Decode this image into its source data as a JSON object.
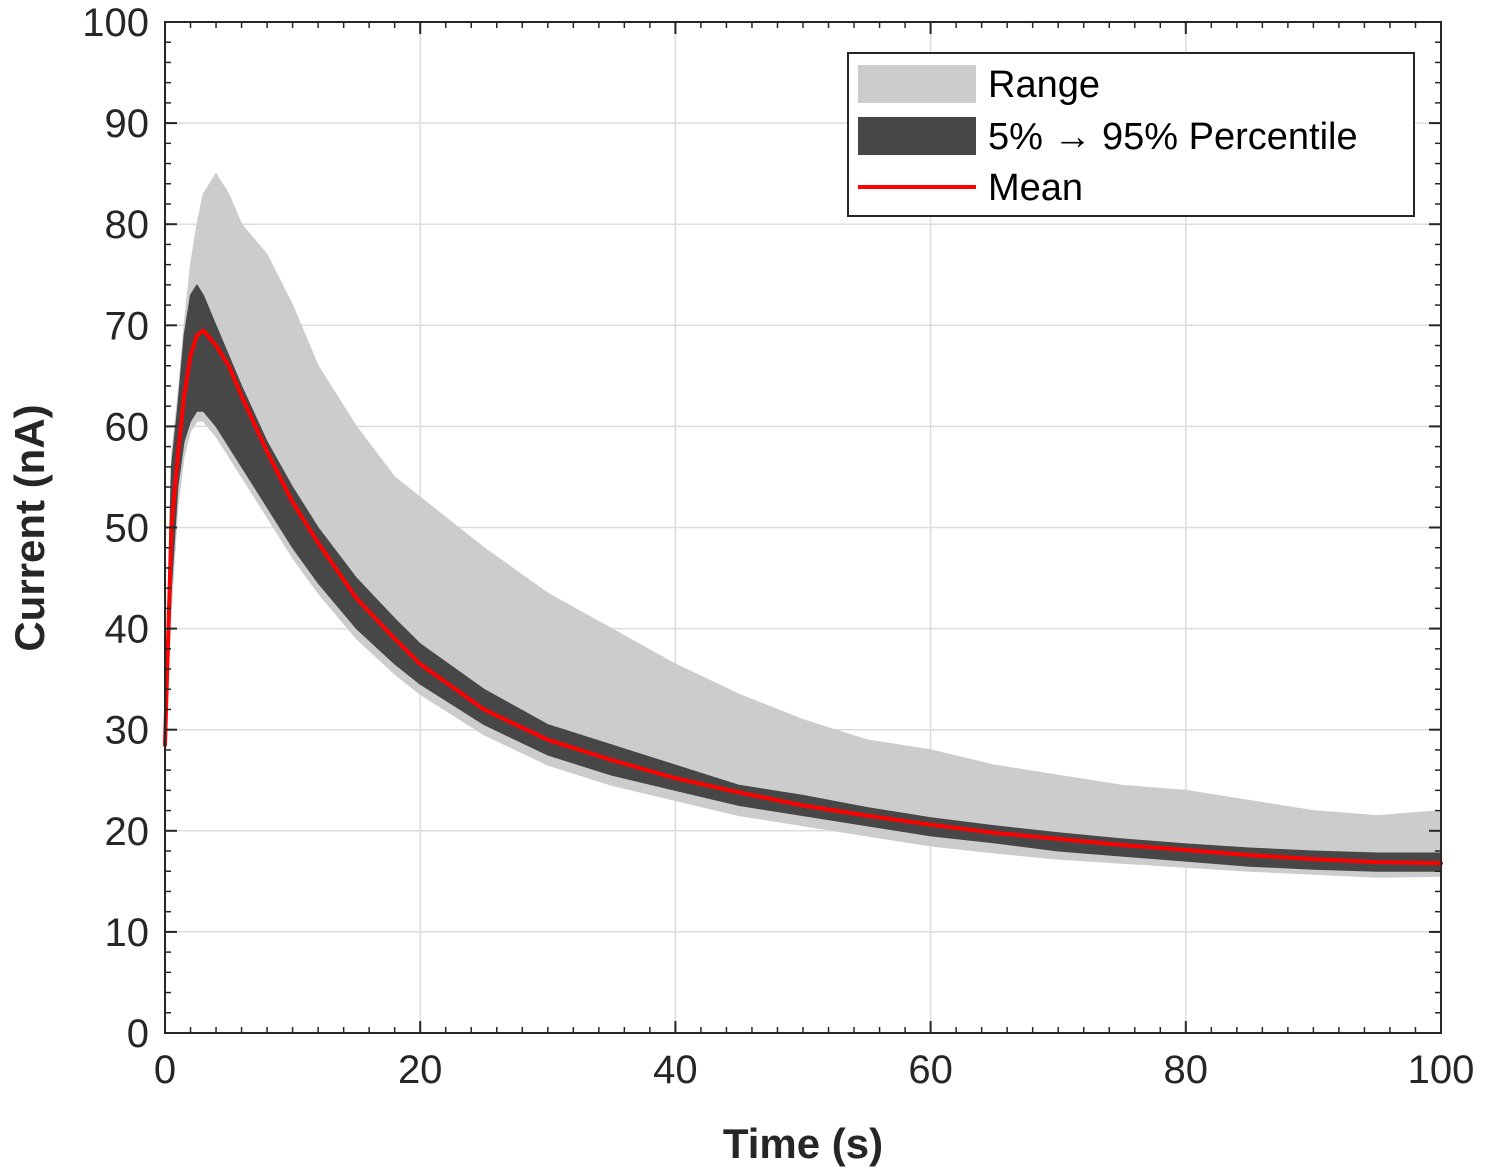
{
  "chart_data": {
    "type": "area",
    "xlabel": "Time (s)",
    "ylabel": "Current (nA)",
    "xlim": [
      0,
      100
    ],
    "ylim": [
      0,
      100
    ],
    "xticks": [
      "0",
      "20",
      "40",
      "60",
      "80",
      "100"
    ],
    "yticks": [
      "0",
      "10",
      "20",
      "30",
      "40",
      "50",
      "60",
      "70",
      "80",
      "90",
      "100"
    ],
    "grid": true,
    "legend_position": "top-right",
    "x": [
      0,
      0.5,
      1,
      1.5,
      2,
      2.5,
      3,
      4,
      5,
      6,
      8,
      10,
      12,
      15,
      18,
      20,
      25,
      30,
      35,
      40,
      45,
      50,
      55,
      60,
      65,
      70,
      75,
      80,
      85,
      90,
      95,
      100
    ],
    "series": [
      {
        "name": "Range",
        "color": "#cccccc",
        "lower": [
          28,
          42,
          52,
          57,
          59.5,
          60.5,
          60.5,
          59,
          57,
          55,
          51,
          47,
          43.5,
          39,
          35.5,
          33.5,
          29.5,
          26.5,
          24.5,
          23,
          21.5,
          20.5,
          19.5,
          18.5,
          17.8,
          17.2,
          16.8,
          16.4,
          16,
          15.7,
          15.4,
          15.5
        ],
        "upper": [
          30,
          57,
          63,
          70,
          76,
          80,
          83,
          85,
          83,
          80,
          77,
          72,
          66,
          60,
          55,
          53,
          48,
          43.5,
          40,
          36.5,
          33.5,
          31,
          29,
          28,
          26.5,
          25.5,
          24.5,
          24,
          23,
          22,
          21.5,
          22
        ]
      },
      {
        "name": "5% → 95% Percentile",
        "color": "#474747",
        "lower": [
          28,
          44,
          54,
          58.5,
          60.5,
          61.5,
          61.5,
          60,
          58,
          56,
          52,
          48,
          44.5,
          40,
          36.5,
          34.5,
          30.5,
          27.5,
          25.5,
          24,
          22.5,
          21.5,
          20.5,
          19.5,
          18.8,
          18,
          17.5,
          17,
          16.5,
          16.2,
          16,
          16
        ],
        "upper": [
          30,
          56,
          62,
          69,
          73,
          74,
          73,
          70,
          67,
          64,
          58.5,
          54,
          50,
          45,
          41,
          38.5,
          34,
          30.5,
          28.5,
          26.5,
          24.5,
          23.5,
          22.3,
          21.3,
          20.5,
          19.8,
          19.2,
          18.7,
          18.3,
          18,
          17.8,
          17.8
        ]
      },
      {
        "name": "Mean",
        "color": "#ff0000",
        "values": [
          28.5,
          50,
          57,
          63,
          67,
          69,
          69.5,
          68,
          66,
          63,
          57.5,
          52.5,
          48.5,
          43,
          39,
          36.5,
          32,
          29,
          27,
          25.2,
          23.8,
          22.5,
          21.5,
          20.6,
          19.8,
          19.2,
          18.6,
          18.1,
          17.6,
          17.2,
          16.9,
          16.8
        ]
      }
    ]
  }
}
